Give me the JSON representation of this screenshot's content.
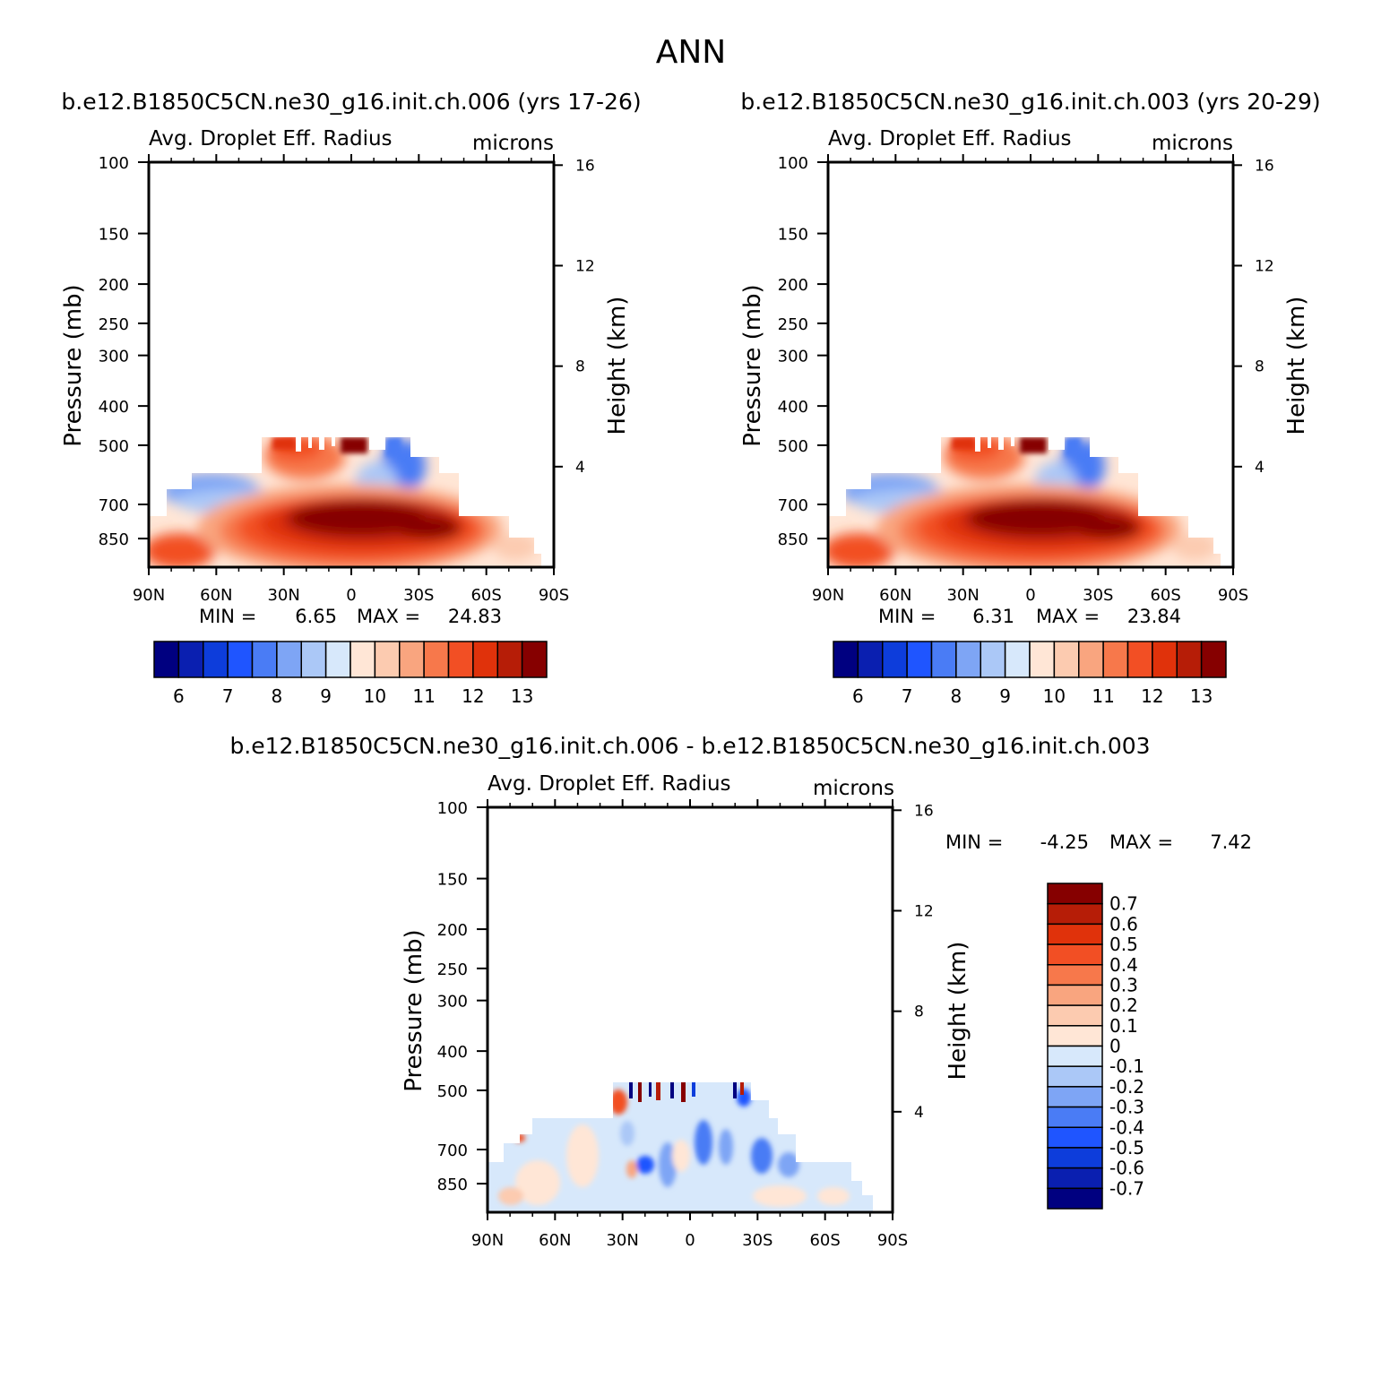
{
  "figure": {
    "title": "ANN"
  },
  "colors": {
    "absolute_palette": [
      "#000080",
      "#0a1fb0",
      "#0d3ddb",
      "#1f55ff",
      "#4a7cf5",
      "#7ea5f5",
      "#abc8f7",
      "#d7e8fb",
      "#ffe6d6",
      "#fccbb0",
      "#f9a57f",
      "#f7784b",
      "#f24f24",
      "#e0320b",
      "#b61d07",
      "#860000"
    ],
    "diff_palette": [
      "#000080",
      "#0a1fb0",
      "#0d3ddb",
      "#1f55ff",
      "#4a7cf5",
      "#7ea5f5",
      "#abc8f7",
      "#d7e8fb",
      "#ffe6d6",
      "#fccbb0",
      "#f9a57f",
      "#f7784b",
      "#f24f24",
      "#e0320b",
      "#b61d07",
      "#860000"
    ]
  },
  "panels": [
    {
      "id": "case1",
      "case_label": "b.e12.B1850C5CN.ne30_g16.init.ch.006 (yrs 17-26)",
      "variable": "Avg. Droplet Eff. Radius",
      "units": "microns",
      "min_label": "MIN =",
      "min_value": "6.65",
      "max_label": "MAX =",
      "max_value": "24.83",
      "ylabel_left": "Pressure (mb)",
      "ylabel_right": "Height (km)",
      "xticks": [
        "90N",
        "60N",
        "30N",
        "0",
        "30S",
        "60S",
        "90S"
      ],
      "yticks_left": [
        "100",
        "150",
        "200",
        "250",
        "300",
        "400",
        "500",
        "700",
        "850"
      ],
      "yticks_right": [
        "16",
        "12",
        "8",
        "4"
      ],
      "colorbar_labels": [
        "6",
        "7",
        "8",
        "9",
        "10",
        "11",
        "12",
        "13"
      ]
    },
    {
      "id": "case2",
      "case_label": "b.e12.B1850C5CN.ne30_g16.init.ch.003 (yrs 20-29)",
      "variable": "Avg. Droplet Eff. Radius",
      "units": "microns",
      "min_label": "MIN =",
      "min_value": "6.31",
      "max_label": "MAX =",
      "max_value": "23.84",
      "ylabel_left": "Pressure (mb)",
      "ylabel_right": "Height (km)",
      "xticks": [
        "90N",
        "60N",
        "30N",
        "0",
        "30S",
        "60S",
        "90S"
      ],
      "yticks_left": [
        "100",
        "150",
        "200",
        "250",
        "300",
        "400",
        "500",
        "700",
        "850"
      ],
      "yticks_right": [
        "16",
        "12",
        "8",
        "4"
      ],
      "colorbar_labels": [
        "6",
        "7",
        "8",
        "9",
        "10",
        "11",
        "12",
        "13"
      ]
    },
    {
      "id": "diff",
      "case_label": "b.e12.B1850C5CN.ne30_g16.init.ch.006 - b.e12.B1850C5CN.ne30_g16.init.ch.003",
      "variable": "Avg. Droplet Eff. Radius",
      "units": "microns",
      "min_label": "MIN =",
      "min_value": "-4.25",
      "max_label": "MAX =",
      "max_value": "7.42",
      "ylabel_left": "Pressure (mb)",
      "ylabel_right": "Height (km)",
      "xticks": [
        "90N",
        "60N",
        "30N",
        "0",
        "30S",
        "60S",
        "90S"
      ],
      "yticks_left": [
        "100",
        "150",
        "200",
        "250",
        "300",
        "400",
        "500",
        "700",
        "850"
      ],
      "yticks_right": [
        "16",
        "12",
        "8",
        "4"
      ],
      "colorbar_labels": [
        "0.7",
        "0.6",
        "0.5",
        "0.4",
        "0.3",
        "0.2",
        "0.1",
        "0",
        "-0.1",
        "-0.2",
        "-0.3",
        "-0.4",
        "-0.5",
        "-0.6",
        "-0.7"
      ]
    }
  ],
  "chart_data": [
    {
      "type": "heatmap",
      "title": "Avg. Droplet Eff. Radius",
      "units": "microns",
      "xlabel": "",
      "ylabel": "Pressure (mb)",
      "ylabel_right": "Height (km)",
      "x_range": [
        "90N",
        "90S"
      ],
      "y_range_mb": [
        100,
        1000
      ],
      "y_scale": "log",
      "levels": [
        6,
        6.5,
        7,
        7.5,
        8,
        8.5,
        9,
        9.5,
        10,
        10.5,
        11,
        11.5,
        12,
        12.5,
        13
      ],
      "min": 6.65,
      "max": 24.83,
      "field": [
        {
          "lat": 60,
          "pressure": 530,
          "value": 8.3
        },
        {
          "lat": 0,
          "pressure": 700,
          "value": 13.5
        },
        {
          "lat": -20,
          "pressure": 760,
          "value": 13.2
        },
        {
          "lat": -45,
          "pressure": 700,
          "value": 12.0
        },
        {
          "lat": 85,
          "pressure": 880,
          "value": 12.5
        },
        {
          "lat": 25,
          "pressure": 480,
          "value": 12.0
        },
        {
          "lat": -15,
          "pressure": 500,
          "value": 8.5
        }
      ]
    },
    {
      "type": "heatmap",
      "title": "Avg. Droplet Eff. Radius",
      "units": "microns",
      "xlabel": "",
      "ylabel": "Pressure (mb)",
      "ylabel_right": "Height (km)",
      "x_range": [
        "90N",
        "90S"
      ],
      "y_range_mb": [
        100,
        1000
      ],
      "y_scale": "log",
      "levels": [
        6,
        6.5,
        7,
        7.5,
        8,
        8.5,
        9,
        9.5,
        10,
        10.5,
        11,
        11.5,
        12,
        12.5,
        13
      ],
      "min": 6.31,
      "max": 23.84,
      "field": [
        {
          "lat": 60,
          "pressure": 530,
          "value": 8.2
        },
        {
          "lat": 0,
          "pressure": 700,
          "value": 13.4
        },
        {
          "lat": -20,
          "pressure": 760,
          "value": 13.1
        },
        {
          "lat": -45,
          "pressure": 700,
          "value": 11.9
        },
        {
          "lat": 85,
          "pressure": 880,
          "value": 12.4
        },
        {
          "lat": 25,
          "pressure": 480,
          "value": 12.0
        },
        {
          "lat": -15,
          "pressure": 500,
          "value": 8.4
        }
      ]
    },
    {
      "type": "heatmap",
      "title": "Avg. Droplet Eff. Radius",
      "units": "microns",
      "xlabel": "",
      "ylabel": "Pressure (mb)",
      "ylabel_right": "Height (km)",
      "x_range": [
        "90N",
        "90S"
      ],
      "y_range_mb": [
        100,
        1000
      ],
      "y_scale": "log",
      "levels": [
        -0.7,
        -0.6,
        -0.5,
        -0.4,
        -0.3,
        -0.2,
        -0.1,
        0,
        0.1,
        0.2,
        0.3,
        0.4,
        0.5,
        0.6,
        0.7
      ],
      "min": -4.25,
      "max": 7.42,
      "field": [
        {
          "lat": 10,
          "pressure": 720,
          "value": -0.3
        },
        {
          "lat": -10,
          "pressure": 650,
          "value": -0.4
        },
        {
          "lat": 20,
          "pressure": 750,
          "value": -0.5
        },
        {
          "lat": 30,
          "pressure": 480,
          "value": 0.6
        },
        {
          "lat": -35,
          "pressure": 850,
          "value": 0.1
        },
        {
          "lat": 70,
          "pressure": 780,
          "value": 0.1
        }
      ]
    }
  ]
}
